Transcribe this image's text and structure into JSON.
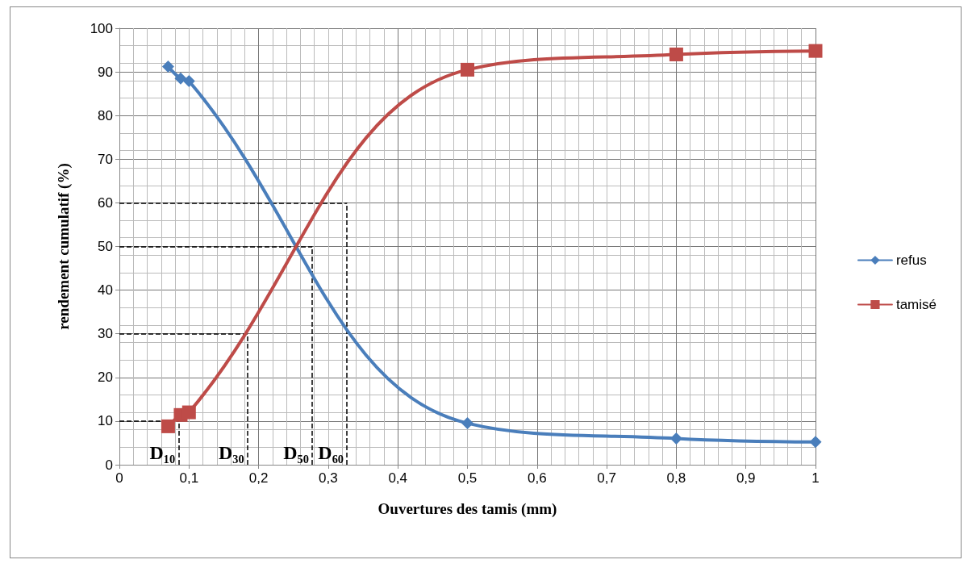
{
  "chart_data": {
    "type": "line",
    "xlabel": "Ouvertures des tamis (mm)",
    "ylabel": "rendement cumulatif (%)",
    "series": [
      {
        "name": "refus",
        "color": "#4a7ebb",
        "marker": "diamond",
        "x": [
          0.07,
          0.088,
          0.1,
          0.5,
          0.8,
          1
        ],
        "values": [
          91.2,
          88.5,
          87.9,
          9.5,
          6,
          5.2
        ]
      },
      {
        "name": "tamisé",
        "color": "#be4b48",
        "marker": "square",
        "x": [
          0.07,
          0.088,
          0.1,
          0.5,
          0.8,
          1
        ],
        "values": [
          8.8,
          11.4,
          12,
          90.5,
          94,
          94.8
        ]
      }
    ],
    "xlim": [
      0,
      1
    ],
    "xticks": [
      0,
      {
        "value": 0.1,
        "label": "0,1"
      },
      {
        "value": 0.2,
        "label": "0,2"
      },
      {
        "value": 0.3,
        "label": "0,3"
      },
      {
        "value": 0.4,
        "label": "0,4"
      },
      {
        "value": 0.5,
        "label": "0,5"
      },
      {
        "value": 0.6,
        "label": "0,6"
      },
      {
        "value": 0.7,
        "label": "0,7"
      },
      {
        "value": 0.8,
        "label": "0,8"
      },
      {
        "value": 0.9,
        "label": "0,9"
      },
      1
    ],
    "ylim": [
      0,
      100
    ],
    "yticks": [
      0,
      10,
      20,
      30,
      40,
      50,
      60,
      70,
      80,
      90,
      100
    ],
    "ref_lines": [
      {
        "axis": "y",
        "value": 10,
        "line_style": "dashed",
        "color": "#000000"
      },
      {
        "axis": "y",
        "value": 30,
        "line_style": "dashed",
        "color": "#000000"
      },
      {
        "axis": "y",
        "value": 50,
        "line_style": "dashed",
        "color": "#000000"
      },
      {
        "axis": "y",
        "value": 60,
        "line_style": "dashed",
        "color": "#000000"
      },
      {
        "axis": "x",
        "value": 0.085,
        "label": "D₁₀",
        "line_style": "dashed",
        "color": "#000000"
      },
      {
        "axis": "x",
        "value": 0.184,
        "label": "D₃₀",
        "line_style": "dashed",
        "color": "#000000"
      },
      {
        "axis": "x",
        "value": 0.277,
        "label": "D₅₀",
        "line_style": "dashed",
        "color": "#000000"
      },
      {
        "axis": "x",
        "value": 0.327,
        "label": "D₆₀",
        "line_style": "dashed",
        "color": "#000000"
      }
    ],
    "grid": true,
    "legend": "right",
    "line_style": "solid"
  }
}
